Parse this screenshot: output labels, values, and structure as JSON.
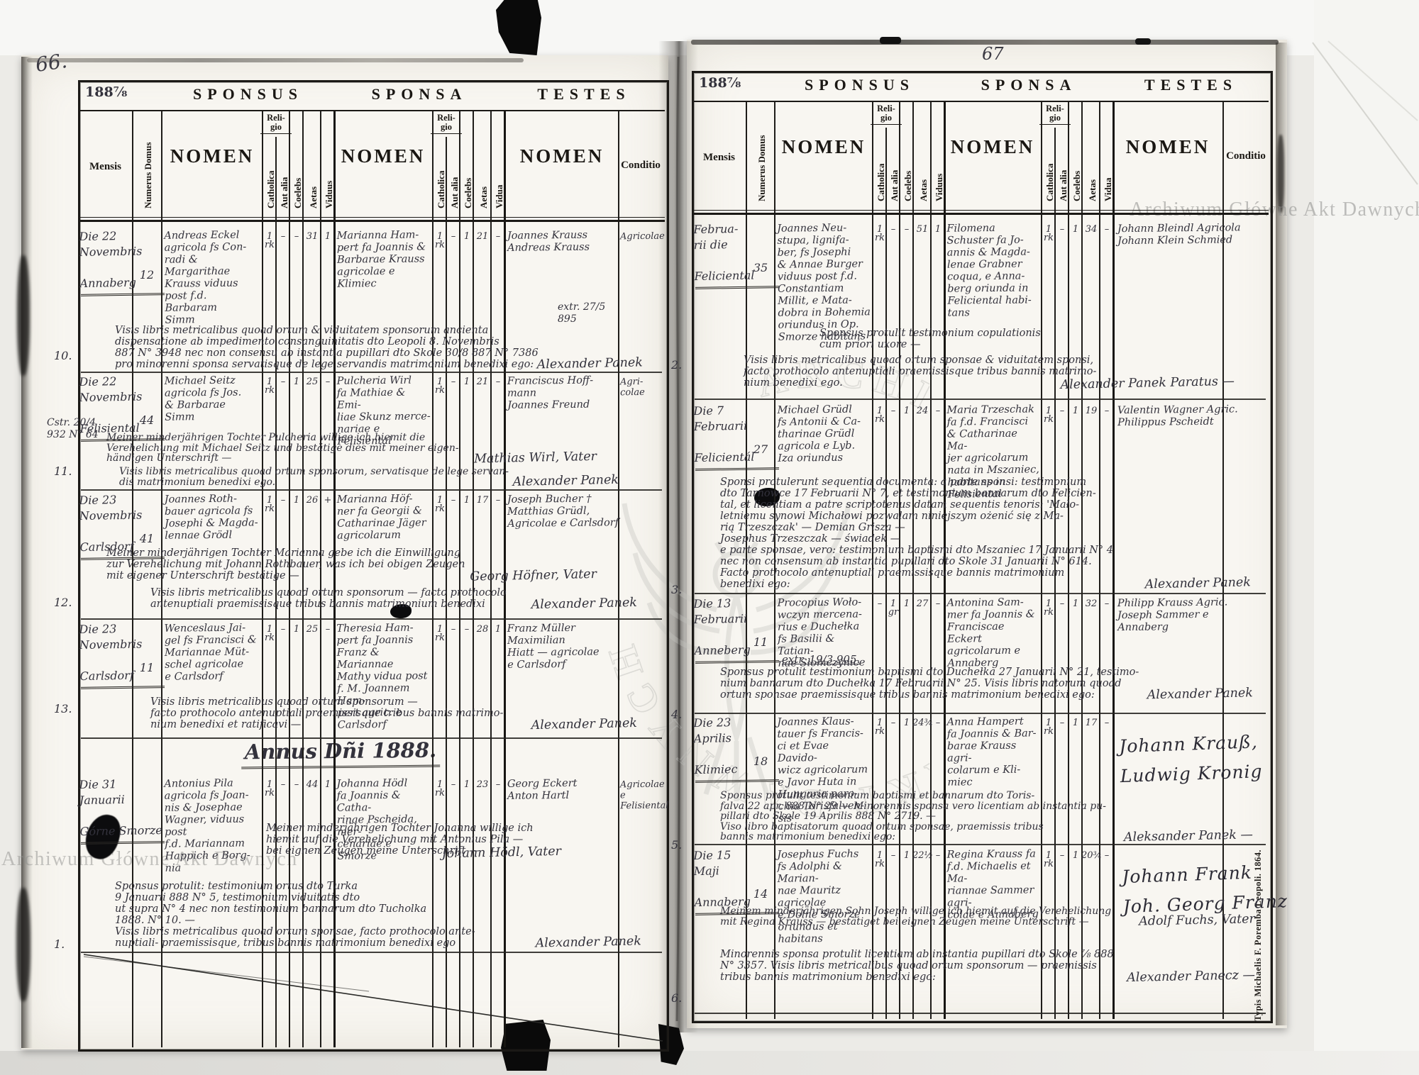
{
  "archive_watermark": "Archiwum Główne Akt Dawnych",
  "imprint": "Typis Michaelis F. Poremba Leopoli. 1864.",
  "header": {
    "sponsus": "SPONSUS",
    "sponsa": "SPONSA",
    "testes": "TESTES",
    "nomen": "NOMEN",
    "mensis": "Mensis",
    "numerus_domus": "Numerus Domus",
    "religio": "Reli-\ngio",
    "catholica": "Catholica",
    "aut_alia": "Aut alia",
    "coelebs": "Coelebs",
    "aetas": "Aetas",
    "viduus": "Viduus",
    "vidua": "Vidua",
    "conditio": "Conditio"
  },
  "left_page": {
    "page_number": "66.",
    "year_label": "188⅞",
    "annus_header": "Annus Dñi 1888.",
    "entries": [
      {
        "no": "10.",
        "side": "",
        "date": "Die 22\nNovembris\n\nAnnaberg",
        "numerus": "12",
        "sponsus": "Andreas Eckel\nagricola fs Con-\nradi & Margarithae\nKrauss viduus\npost f.d. Barbaram\nSimm",
        "sponsus_values": [
          "1\nrk",
          "–",
          "–",
          "31",
          "1"
        ],
        "sponsa": "Marianna Ham-\npert fa Joannis &\nBarbarae Krauss\nagricolae e Klimiec",
        "sponsa_values": [
          "1\nrk",
          "–",
          "1",
          "21",
          "–"
        ],
        "testes": "Joannes Krauss\nAndreas Krauss",
        "conditio": "Agricolae",
        "notes": [
          {
            "text": "Visis libris metricalibus quoad ortum & viduitatem sponsorum ancienta\ndispensatione ab impedimento consanguinitatis dto Leopoli 8. Novembris\n887 N° 3948 nec non consensu ab instantia pupillari dto Skole 30/8 887 N° 7386\npro minorenni sponsa servatisque de lege servandis matrimonium benedixi ego:",
            "sig": "Alexander Panek"
          }
        ]
      },
      {
        "no": "11.",
        "side": "Cstr. 20/4\n932 N° 64",
        "date": "Die 22\nNovembris\n\nFelisiental",
        "numerus": "44",
        "sponsus": "Michael Seitz\nagricola fs Jos.\n& Barbarae\nSimm",
        "sponsus_values": [
          "1\nrk",
          "–",
          "1",
          "25",
          "–"
        ],
        "sponsa": "Pulcheria Wirl\nfa Mathiae & Emi-\nliae Skunz merce-\nnariae e Felisiental",
        "sponsa_values": [
          "1\nrk",
          "–",
          "1",
          "21",
          "–"
        ],
        "testes": "Franciscus Hoff-\nmann\nJoannes Freund",
        "conditio": "Agri-\ncolae",
        "notes": [
          {
            "text": "Meiner minderjährigen Tochter Pulcheria willige ich hiemit die\nVerehelichung mit Michael Seitz und bestätige dies mit meiner eigen-\nhändigen Unterschrift —",
            "sig": "Mathias Wirl, Vater"
          },
          {
            "text": "Visis libris metricalibus quoad ortum sponsorum, servatisque de lege servan-\ndis matrimonium benedixi ego.",
            "sig": "Alexander Panek"
          }
        ]
      },
      {
        "no": "12.",
        "side": "",
        "date": "Die 23\nNovembris\n\nCarlsdorf",
        "numerus": "41",
        "sponsus": "Joannes Roth-\nbauer agricola fs\nJosephi & Magda-\nlennae Grödl",
        "sponsus_values": [
          "1\nrk",
          "–",
          "1",
          "26",
          "+"
        ],
        "sponsa": "Marianna Höf-\nner fa Georgii &\nCatharinae Jäger\nagricolarum",
        "sponsa_values": [
          "1\nrk",
          "–",
          "1",
          "17",
          "–"
        ],
        "testes": "Joseph Bucher †\nMatthias Grüdl,\nAgricolae e Carlsdorf",
        "conditio": "",
        "notes": [
          {
            "text": "Meiner minderjährigen Tochter Marianna gebe ich die Einwilligung\nzur Verehelichung mit Johann Rothbauer, was ich bei obigen Zeugen\nmit eigener Unterschrift bestätige —",
            "sig": "Georg Höfner, Vater"
          },
          {
            "text": "Visis libris metricalibus quoad ortum sponsorum — facto prothocolo\nantenuptiali praemissisque tribus bannis matrimonium benedixi",
            "sig": "Alexander Panek"
          }
        ]
      },
      {
        "no": "13.",
        "side": "",
        "date": "Die 23\nNovembris\n\nCarlsdorf",
        "numerus": "11",
        "sponsus": "Wenceslaus Jai-\ngel fs Francisci &\nMariannae Müt-\nschel agricolae\ne Carlsdorf",
        "sponsus_values": [
          "1\nrk",
          "–",
          "1",
          "25",
          "–"
        ],
        "sponsa": "Theresia Ham-\npert fa Joannis\nFranz & Mariannae\nMathy vidua post\nf. M. Joannem Ham-\npert agric. e Carlsdorf",
        "sponsa_values": [
          "1\nrk",
          "–",
          "–",
          "28",
          "1"
        ],
        "testes": "Franz Müller\nMaximilian\nHiatt — agricolae\ne Carlsdorf",
        "conditio": "",
        "notes": [
          {
            "text": "Visis libris metricalibus quoad ortum sponsorum —\nfacto prothocolo antenuptiali praemissisque tribus bannis matrimo-\nnium benedixi et ratificavi —",
            "sig": "Alexander Panek"
          }
        ]
      },
      {
        "no": "1.",
        "side": "",
        "date": "Die 31\nJanuarii\n\nGórne Smorze",
        "numerus": "",
        "sponsus": "Antonius Pila\nagricola fs Joan-\nnis & Josephae\nWagner, viduus post\nf.d. Mariannam\nHappich e Borg-\nnia",
        "sponsus_values": [
          "1\nrk",
          "–",
          "–",
          "44",
          "1"
        ],
        "sponsa": "Johanna Hödl\nfa Joannis & Catha-\nrinae Pscheida, mer-\ncenariae e Smorze",
        "sponsa_values": [
          "1\nrk",
          "–",
          "1",
          "23",
          "–"
        ],
        "testes": "Georg Eckert\nAnton Hartl",
        "conditio": "Agricolae\ne Felisiental",
        "notes": [
          {
            "text": "Meiner minderjährigen Tochter Johanna willige ich\nhiemit auf die Verehelichung mit Antonius Pila —\nbei eignen Zeugen meine Unterschrift —",
            "sig": "Johann Hödl, Vater"
          },
          {
            "text": "Sponsus protulit: testimonium ortus dto Turka\n9 Januarii 888 N° 5, testimonium viduitatis dto\nut supra N° 4 nec non testimonium bannarum dto Tucholka\n1888. N° 10. —\nVisis libris metricalibus quoad ortum sponsae, facto prothocolo ante-\nnuptiali- praemissisque, tribus bannis matrimonium benedixi ego",
            "sig": "Alexander Panek"
          }
        ]
      }
    ]
  },
  "right_page": {
    "page_number": "67",
    "year_label": "188⅞",
    "entries": [
      {
        "no": "2.",
        "side": "extr. 27/5\n895",
        "date": "Februa-\nrii die\n\nFeliciental",
        "numerus": "35",
        "sponsus": "Joannes Neu-\nstupa, lignifa-\nber, fs Josephi\n& Annae Burger\nviduus post f.d.\nConstantiam\nMillit, e Mata-\ndobra in Bohemia\noriundus in Op.\nSmorze habitans",
        "sponsus_values": [
          "1\nrk",
          "–",
          "–",
          "51",
          "1"
        ],
        "sponsa": "Filomena\nSchuster fa Jo-\nannis & Magda-\nlenae Grabner\ncoqua, e Anna-\nberg oriunda in\nFeliciental habi-\ntans",
        "sponsa_values": [
          "1\nrk",
          "–",
          "1",
          "34",
          "–"
        ],
        "testes": "Johann Bleindl Agricola\nJohann Klein Schmied",
        "conditio": "",
        "notes": [
          {
            "text": "Sponsus protulit testimonium copulationis\ncum priori uxore —"
          },
          {
            "text": "Visis libris metricalibus quoad ortum sponsae & viduitatem sponsi,\nfacto prothocolo antenuptiali praemissisque tribus bannis matrimo-\nnium benedixi ego.",
            "sig": "Alexander Panek Paratus —"
          }
        ]
      },
      {
        "no": "3.",
        "side": "",
        "date": "Die 7\nFebruarii\n\nFelicientál",
        "numerus": "27",
        "sponsus": "Michael Grüdl\nfs Antonii & Ca-\ntharinae Grüdl\nagricola e Lyb.\nIza oriundus",
        "sponsus_values": [
          "1\nrk",
          "–",
          "1",
          "24",
          "–"
        ],
        "sponsa": "Maria Trzeschak\nfa f.d. Francisci\n& Catharinae Ma-\njer agricolarum\nnata in Mszaniec,\nhabitans in Felisiental",
        "sponsa_values": [
          "1\nrk",
          "–",
          "1",
          "19",
          "–"
        ],
        "testes": "Valentin Wagner Agric.\nPhilippus Pscheidt",
        "conditio": "",
        "notes": [
          {
            "text": "Sponsi protulerunt sequentia documenta: a parte sponsi: testimonium\ndto Tarnowce 17 Februarii N° 7, et testimonium bannarum dto Felicien-\ntal, et licentiam a patre scriptotenus datam sequentis tenoris: 'Mało-\nletniemu synowi Michałowi pozwalam niniejszym ożenić się z Ma-\nrią Trzeszczak' —  Demian Grisza —\nJosephus Trzeszczak — świadek —\ne parte sponsae, vero: testimonium baptismi dto Mszaniec 17 Januarii N° 4\nnec non consensum ab instantia pupillari dto Skole 31 Januarii N° 614.\nFacto prothocolo antenuptiali praemissisque bannis matrimonium\nbenedixi ego:",
            "sig": "Alexander Panek"
          }
        ]
      },
      {
        "no": "4.",
        "side": "",
        "date": "Die 13\nFebruarii\n\nAnneberg",
        "numerus": "11",
        "sponsus": "Procopius Woło-\nwczyn mercena-\nrius e Duchełka\nfs Basilii & Tatian-\nnae Słomczynice",
        "sponsus_values": [
          "–",
          "1\ngr",
          "1",
          "27",
          "–"
        ],
        "sponsa": "Antonina Sam-\nmer fa Joannis &\nFranciscae Eckert\nagricolarum e\nAnnaberg",
        "sponsa_values": [
          "1\nrk",
          "–",
          "1",
          "32",
          "–"
        ],
        "testes": "Philipp Krauss Agric.\nJoseph Sammer e\nAnnaberg",
        "conditio": "",
        "notes": [
          {
            "text": "extr. 19/3 905."
          },
          {
            "text": "Sponsus protulit testimonium baptismi dto Duchełka 27 Januarii N° 21, testimo-\nnium bannarum dto Duchełka 17 Februarii N° 25. Visis libris natorum quoad\nortum sponsae praemissisque tribus bannis matrimonium benedixi ego:",
            "sig": "Alexander Panek"
          }
        ]
      },
      {
        "no": "5.",
        "side": "",
        "date": "Die 23\nAprilis\n\nKlimiec",
        "numerus": "18",
        "sponsus": "Joannes Klaus-\ntauer fs Francis-\nci et Evae Davido-\nwicz agricolarum\ne Javor Huta in\nHungaria paro-\nchia Torisfalven-\nsis",
        "sponsus_values": [
          "1\nrk",
          "–",
          "1",
          "24¾",
          "–"
        ],
        "sponsa": "Anna Hampert\nfa Joannis & Bar-\nbarae Krauss agri-\ncolarum e Kli-\nmiec",
        "sponsa_values": [
          "1\nrk",
          "–",
          "1",
          "17",
          "–"
        ],
        "testes": "Johann Krauß,\nLudwig Kronig",
        "conditio": "",
        "notes": [
          {
            "text": "Sponsus protulit testimonium baptismi et bannarum dto Toris-\nfalva 22 apr. 888 N° 29 — Minorennis sponsa vero licentiam ab instantia pu-\npillari dto Skole 19 Aprilis 888 N° 2719. —\nViso libro baptisatorum quoad ortum sponsae, praemissis tribus\nbannis matrimonium benedixi ego:",
            "sig": "Aleksander Panek —"
          }
        ]
      },
      {
        "no": "6.",
        "side": "",
        "date": "Die 15\nMaji\n\nAnnaberg",
        "numerus": "14",
        "sponsus": "Josephus Fuchs\nfs Adolphi & Marian-\nnae Mauritz agricolae\ne Dolne Smorze\noriundus et habitans",
        "sponsus_values": [
          "1\nrk",
          "–",
          "1",
          "22½",
          "–"
        ],
        "sponsa": "Regina Krauss fa\nf.d. Michaelis et Ma-\nriannae Sammer agri-\ncolae e Annaberg",
        "sponsa_values": [
          "1\nrk",
          "–",
          "1",
          "20¾",
          "–"
        ],
        "testes": "Johann Frank\nJoh. Georg Franz",
        "conditio": "",
        "notes": [
          {
            "text": "Meinem minderjährigen Sohn Joseph willige ich hiemit auf die Verehelichung\nmit Regina Krauss — bestätiget bei eignen Zeugen meine Unterschrift —",
            "sig": "Adolf Fuchs, Vater"
          },
          {
            "text": "Minorennis sponsa protulit licentiam ab instantia pupillari dto Skole ⅞ 888\nN° 3357.   Visis libris metricalibus quoad ortum sponsorum — praemissis\ntribus bannis matrimonium benedixi ego:",
            "sig": "Alexander Panecz —"
          }
        ]
      }
    ]
  }
}
